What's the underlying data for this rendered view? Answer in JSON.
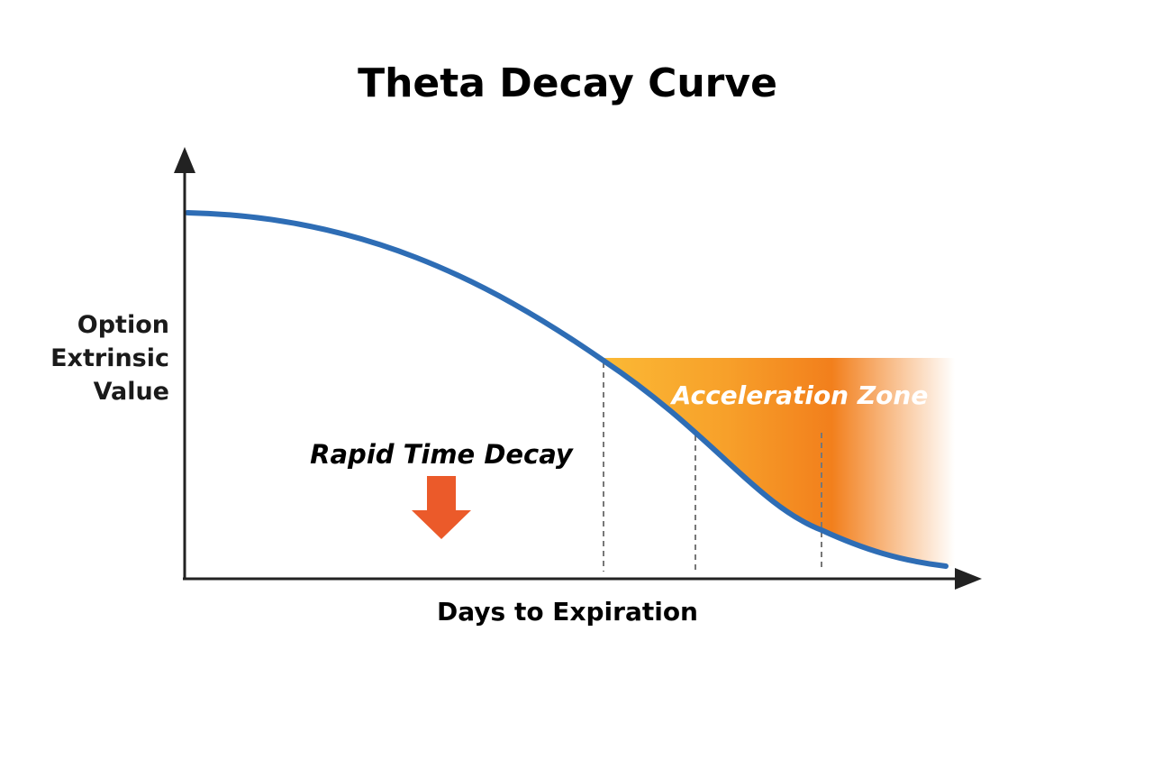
{
  "title": "Theta Decay Curve",
  "axes": {
    "x_label": "Days to Expiration",
    "y_label": "Option Extrinsic Value"
  },
  "annotations": {
    "zone": "Acceleration Zone",
    "decay": "Rapid Time Decay"
  }
}
